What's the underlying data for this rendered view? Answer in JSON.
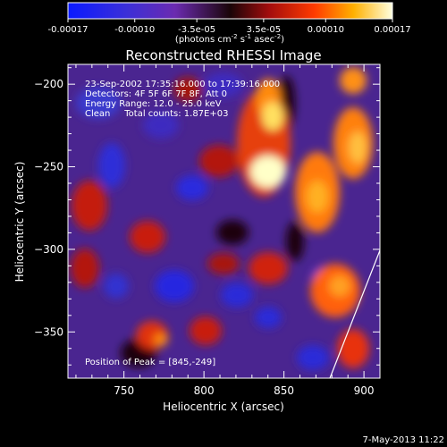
{
  "colorbar": {
    "ticks": [
      "-0.00017",
      "-0.00010",
      "-3.5e-05",
      "3.5e-05",
      "0.00010",
      "0.00017"
    ],
    "tick_values": [
      -0.00017,
      -0.0001,
      -3.5e-05,
      3.5e-05,
      0.0001,
      0.00017
    ],
    "units_prefix": "(photons cm",
    "units_exp1": "-2",
    "units_mid": " s",
    "units_exp2": "-1",
    "units_mid2": " asec",
    "units_exp3": "-2",
    "units_suffix": ")"
  },
  "chart_data": {
    "type": "heatmap",
    "title": "Reconstructed RHESSI Image",
    "xlabel": "Heliocentric X (arcsec)",
    "ylabel": "Heliocentric Y (arcsec)",
    "xlim": [
      715,
      910
    ],
    "ylim": [
      -378,
      -188
    ],
    "x_ticks": [
      750,
      800,
      850,
      900
    ],
    "y_ticks": [
      -200,
      -250,
      -300,
      -350
    ],
    "x_tick_labels": [
      "750",
      "800",
      "850",
      "900"
    ],
    "y_tick_labels": [
      "−200",
      "−250",
      "−300",
      "−350"
    ],
    "color_range": [
      -0.00017,
      0.00017
    ],
    "grid": false,
    "info_lines": [
      "23-Sep-2002 17:35:16.000 to 17:39:16.000",
      "Detectors: 4F 5F 6F 7F 8F, Att 0",
      "Energy Range: 12.0 - 25.0 keV",
      "Clean     Total counts: 1.87E+03"
    ],
    "peak_label": "Position of Peak = [845,-249]",
    "peak": [
      845,
      -249
    ],
    "bright_sources": [
      {
        "x": 845,
        "y": -249,
        "value": 0.00017
      },
      {
        "x": 848,
        "y": -212,
        "value": 0.00015
      },
      {
        "x": 880,
        "y": -260,
        "value": 0.00012
      },
      {
        "x": 898,
        "y": -225,
        "value": 0.0001
      },
      {
        "x": 820,
        "y": -200,
        "value": 9e-05
      },
      {
        "x": 885,
        "y": -335,
        "value": 9e-05
      },
      {
        "x": 770,
        "y": -375,
        "value": 6e-05
      },
      {
        "x": 728,
        "y": -255,
        "value": 7e-05
      }
    ]
  },
  "footer": {
    "timestamp": "7-May-2013 11:22"
  }
}
